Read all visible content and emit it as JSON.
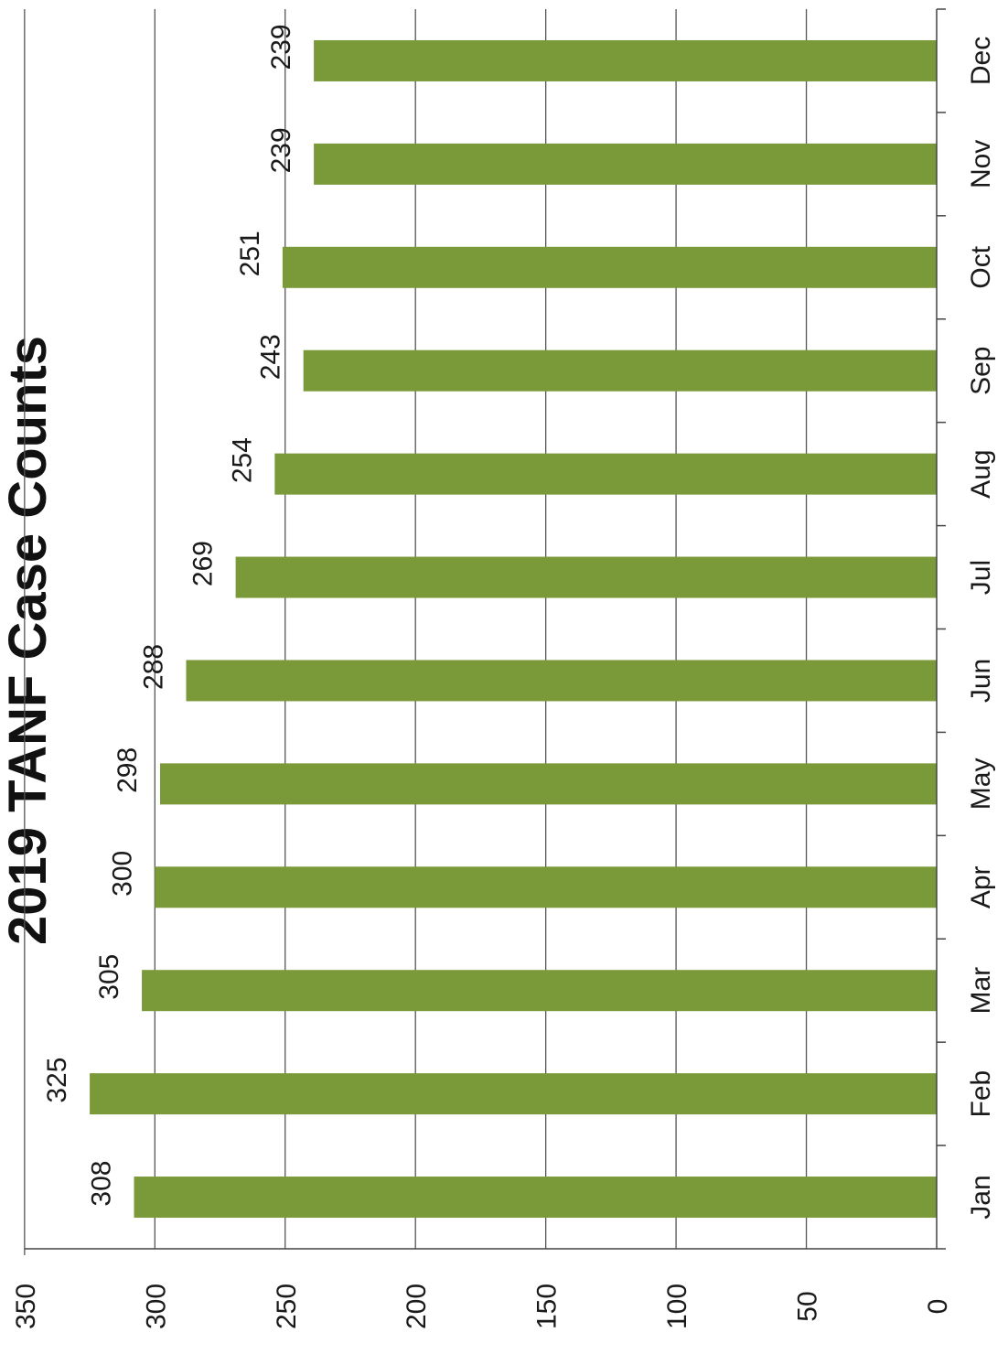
{
  "chart_data": {
    "type": "bar",
    "title": "2019 TANF Case Counts",
    "categories": [
      "Jan",
      "Feb",
      "Mar",
      "Apr",
      "May",
      "Jun",
      "Jul",
      "Aug",
      "Sep",
      "Oct",
      "Nov",
      "Dec"
    ],
    "values": [
      308,
      325,
      305,
      300,
      298,
      288,
      269,
      254,
      243,
      251,
      239,
      239
    ],
    "data_labels": [
      "308",
      "325",
      "305",
      "300",
      "298",
      "288",
      "269",
      "254",
      "243",
      "251",
      "239",
      "239"
    ],
    "ylim": [
      0,
      350
    ],
    "yticks": [
      0,
      50,
      100,
      150,
      200,
      250,
      300,
      350
    ],
    "ytick_labels": [
      "0",
      "50",
      "100",
      "150",
      "200",
      "250",
      "300",
      "350"
    ],
    "xlabel": "",
    "ylabel": "",
    "grid": true,
    "bar_color": "#7A9A3A",
    "orientation": "rotated 90 degrees clockwise"
  }
}
